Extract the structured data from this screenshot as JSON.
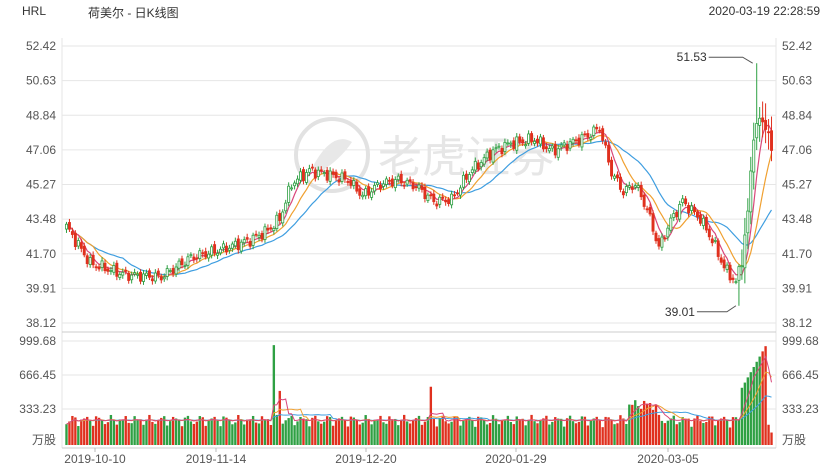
{
  "header": {
    "ticker": "HRL",
    "stock_name": "荷美尔 - 日K线图",
    "timestamp": "2020-03-19 22:28:59"
  },
  "watermark": "老虎证券",
  "colors": {
    "up": "#2ea043",
    "down": "#e0301e",
    "ma_fast": "#d9477a",
    "ma_mid": "#f0a030",
    "ma_slow": "#3f9ee0",
    "grid": "#e6e6e6",
    "axis_text": "#555555"
  },
  "chart_data": [
    {
      "type": "candlestick",
      "y_ticks": [
        "52.42",
        "50.63",
        "48.84",
        "47.06",
        "45.27",
        "43.48",
        "41.70",
        "39.91",
        "38.12"
      ],
      "ylim": [
        38.12,
        52.42
      ],
      "x_ticks": [
        "2019-10-10",
        "2019-11-14",
        "2019-12-20",
        "2020-01-29",
        "2020-03-05"
      ],
      "annotations": {
        "high": "51.53",
        "low": "39.01"
      },
      "grid": true
    },
    {
      "type": "bar",
      "name": "volume",
      "y_ticks": [
        "999.68",
        "666.45",
        "333.23"
      ],
      "unit_label": "万股",
      "ylim": [
        0,
        999.68
      ],
      "grid": true
    }
  ]
}
